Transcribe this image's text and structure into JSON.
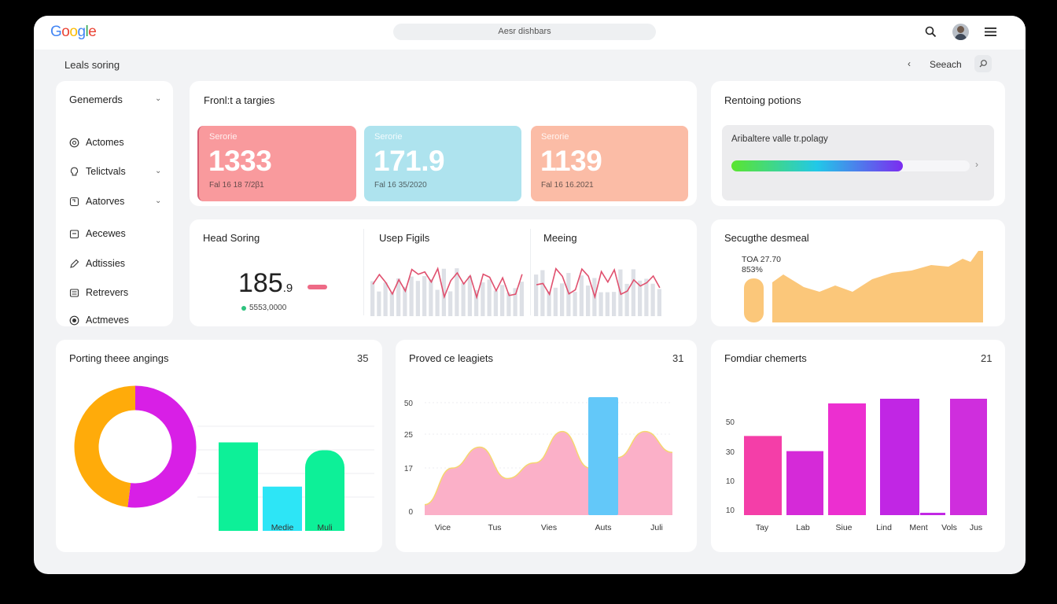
{
  "topbar": {
    "logo": "Google",
    "search_placeholder": "Aesr dishbars",
    "icons": [
      "search-icon",
      "avatar",
      "menu-icon"
    ]
  },
  "breadcrumb": {
    "title": "Leals soring",
    "back_label": "‹",
    "search_label": "Seeach"
  },
  "sidebar": {
    "header": "Genemerds",
    "items": [
      {
        "label": "Actomes",
        "icon": "activity-icon",
        "chevron": false
      },
      {
        "label": "Telictvals",
        "icon": "bulb-icon",
        "chevron": true
      },
      {
        "label": "Aatorves",
        "icon": "archive-icon",
        "chevron": true
      },
      {
        "label": "Aecewes",
        "icon": "calendar-icon",
        "chevron": false
      },
      {
        "label": "Adtissies",
        "icon": "tag-icon",
        "chevron": false
      },
      {
        "label": "Retrevers",
        "icon": "inbox-icon",
        "chevron": false
      },
      {
        "label": "Actmeves",
        "icon": "target-icon",
        "chevron": false
      }
    ]
  },
  "targets": {
    "title": "Fronl:t a targies",
    "metrics": [
      {
        "label": "Serorie",
        "value": "1333",
        "sub": "Fal 16 18 7/2β1",
        "color": "#f99a9d"
      },
      {
        "label": "Serorie",
        "value": "171.9",
        "sub": "Fal 16 35/2020",
        "color": "#aee3ee"
      },
      {
        "label": "Serorie",
        "value": "1139",
        "sub": "Fal 16 16.2021",
        "color": "#fbbca6"
      }
    ]
  },
  "rendering": {
    "title": "Rentoing potions",
    "bar_label": "Aribaltere valle tr.polagy",
    "progress": 0.72,
    "progress_colors": [
      "#5be52f",
      "#22c8e8",
      "#7c2cf0"
    ]
  },
  "head_scoring": {
    "title": "Head Soring",
    "value": "185",
    "value_suffix": ".9",
    "sub": "5553,0000",
    "dot_color": "#2ec27e"
  },
  "usep": {
    "title": "Usep Figils"
  },
  "meeing": {
    "title": "Meeing"
  },
  "secugthe": {
    "title": "Secugthe desmeal",
    "line1": "TOA 27.70",
    "line2": "853%",
    "color": "#fbc77a"
  },
  "porting": {
    "title": "Porting theee angings",
    "count": "35",
    "donut": [
      {
        "value": 52,
        "color": "#d81fe6"
      },
      {
        "value": 48,
        "color": "#ffab0a"
      }
    ],
    "bars": [
      {
        "label": "",
        "value": 0.9,
        "color": "#0df098"
      },
      {
        "label": "Medie",
        "value": 0.45,
        "color": "#2de5f6"
      },
      {
        "label": "Muli",
        "value": 0.82,
        "color": "#0df098"
      }
    ]
  },
  "chart_data": [
    {
      "type": "area",
      "title": "Proved ce leagiets",
      "count": "31",
      "categories": [
        "Vice",
        "Tus",
        "Vies",
        "Auts",
        "Juli"
      ],
      "yticks": [
        "50",
        "25",
        "17",
        "0"
      ],
      "area_values": [
        0.1,
        0.45,
        0.65,
        0.35,
        0.5,
        0.8,
        0.45,
        0.55,
        0.8,
        0.6
      ],
      "highlight_bar": {
        "category": "Auts",
        "value": 1.0,
        "color": "#63c8f9"
      },
      "area_color": "#fbb0c8"
    },
    {
      "type": "bar",
      "title": "Fomdiar chemerts",
      "count": "21",
      "categories": [
        "Tay",
        "Lab",
        "Siue",
        "Lind",
        "Ment",
        "Vols",
        "Jus"
      ],
      "yticks": [
        "50",
        "30",
        "10",
        "10"
      ],
      "values": [
        0.68,
        0.55,
        0.96,
        1.0,
        0.02,
        1.0,
        0.0
      ],
      "colors": [
        "#f43ea8",
        "#d52ad8",
        "#ec2fd0",
        "#c126e4",
        "#c126e4",
        "#cf2edd",
        "#cf2edd"
      ]
    }
  ]
}
